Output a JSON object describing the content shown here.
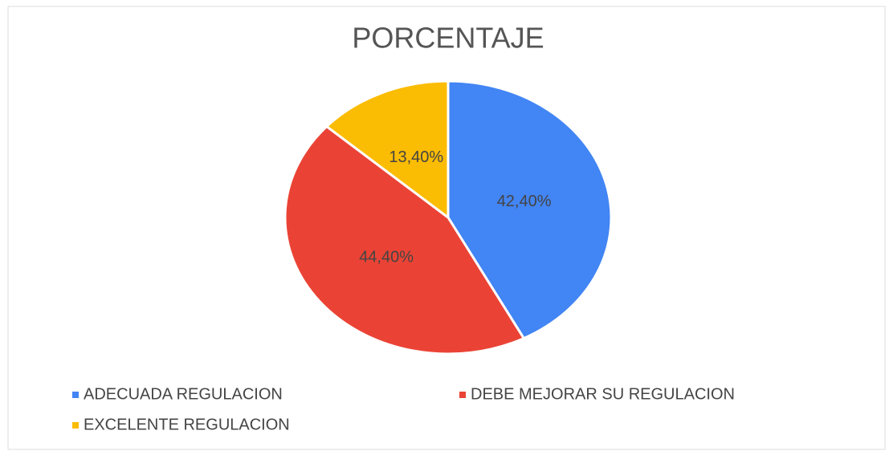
{
  "chart_data": {
    "type": "pie",
    "title": "PORCENTAJE",
    "categories": [
      "ADECUADA REGULACION",
      "DEBE MEJORAR SU REGULACION",
      "EXCELENTE REGULACION"
    ],
    "values": [
      42.4,
      44.4,
      13.4
    ],
    "value_labels": [
      "42,40%",
      "44,40%",
      "13,40%"
    ],
    "colors": [
      "#4285f4",
      "#ea4335",
      "#fbbc04"
    ],
    "legend": "bottom"
  }
}
